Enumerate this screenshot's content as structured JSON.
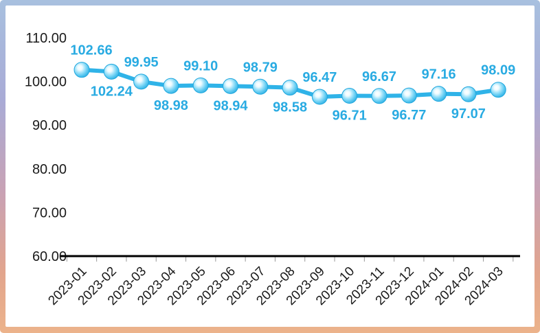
{
  "chart_data": {
    "type": "line",
    "title": "",
    "xlabel": "",
    "ylabel": "",
    "categories": [
      "2023-01",
      "2023-02",
      "2023-03",
      "2023-04",
      "2023-05",
      "2023-06",
      "2023-07",
      "2023-08",
      "2023-09",
      "2023-10",
      "2023-11",
      "2023-12",
      "2024-01",
      "2024-02",
      "2024-03"
    ],
    "values": [
      102.66,
      102.24,
      99.95,
      98.98,
      99.1,
      98.94,
      98.79,
      98.58,
      96.47,
      96.71,
      96.67,
      96.77,
      97.16,
      97.07,
      98.09
    ],
    "data_labels": [
      "102.66",
      "102.24",
      "99.95",
      "98.98",
      "99.10",
      "98.94",
      "98.79",
      "98.58",
      "96.47",
      "96.71",
      "96.67",
      "96.77",
      "97.16",
      "97.07",
      "98.09"
    ],
    "data_label_positions": [
      "above",
      "below",
      "above",
      "below",
      "above",
      "below",
      "above",
      "below",
      "above",
      "below",
      "above",
      "below",
      "above",
      "below",
      "above"
    ],
    "y_tick_labels": [
      "110.00",
      "100.00",
      "90.00",
      "80.00",
      "70.00",
      "60.00"
    ],
    "y_tick_values": [
      110,
      100,
      90,
      80,
      70,
      60
    ],
    "ylim": [
      60,
      110
    ],
    "grid": false,
    "legend": null,
    "colors": {
      "line": "#2fb3e8",
      "marker_edge": "#1ea6dd",
      "marker_core": "#eefbff",
      "data_label": "#29abe2",
      "axis_line": "#000000",
      "tick": "#999999",
      "axis_text": "#1a1a1a",
      "frame_top": "#a8c0df",
      "frame_middle": "#c9a2b4",
      "frame_bottom": "#ecb38b"
    }
  }
}
